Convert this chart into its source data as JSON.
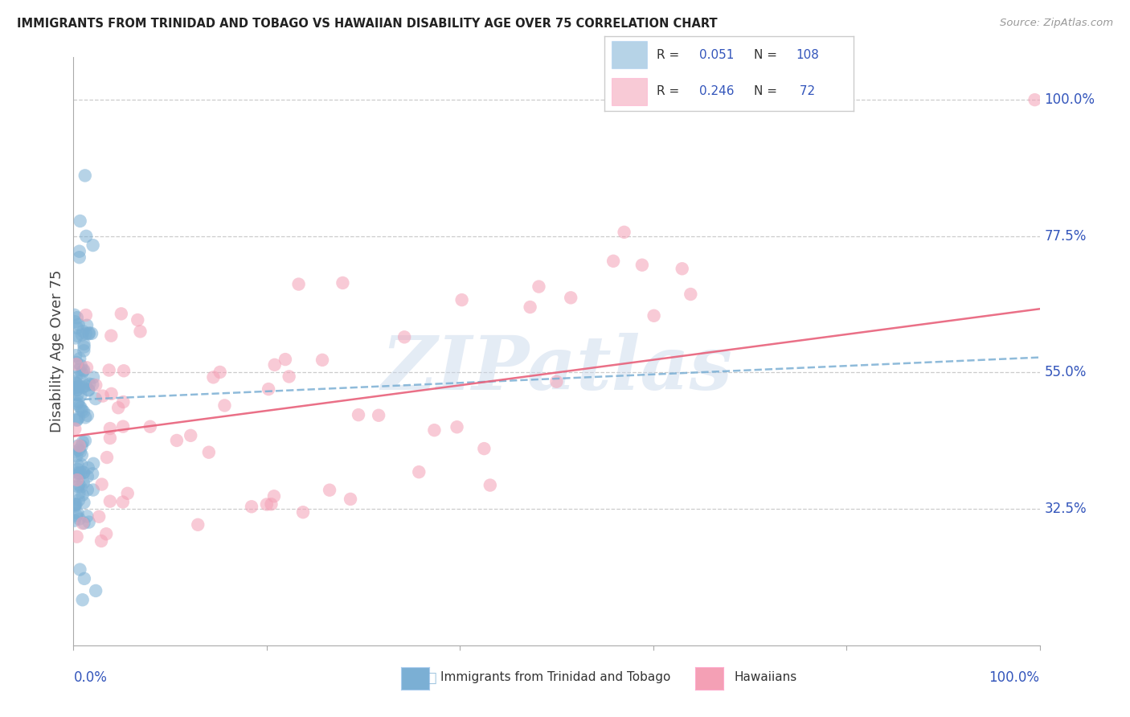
{
  "title": "IMMIGRANTS FROM TRINIDAD AND TOBAGO VS HAWAIIAN DISABILITY AGE OVER 75 CORRELATION CHART",
  "source": "Source: ZipAtlas.com",
  "ylabel": "Disability Age Over 75",
  "ytick_positions": [
    0.325,
    0.55,
    0.775,
    1.0
  ],
  "ytick_labels": [
    "32.5%",
    "55.0%",
    "77.5%",
    "100.0%"
  ],
  "xlim": [
    0.0,
    1.0
  ],
  "ylim": [
    0.1,
    1.07
  ],
  "watermark": "ZIPatlas",
  "blue_color": "#7BAFD4",
  "pink_color": "#F4A0B5",
  "trend_blue": "#7BAFD4",
  "trend_pink": "#E8607A",
  "grid_color": "#CCCCCC",
  "title_color": "#222222",
  "axis_label_color": "#3355BB",
  "watermark_color": "#C5D5EA",
  "legend_r1": "0.051",
  "legend_n1": "108",
  "legend_r2": "0.246",
  "legend_n2": "72",
  "r_color": "#3355BB",
  "n_color": "#3355BB",
  "background_color": "#ffffff"
}
